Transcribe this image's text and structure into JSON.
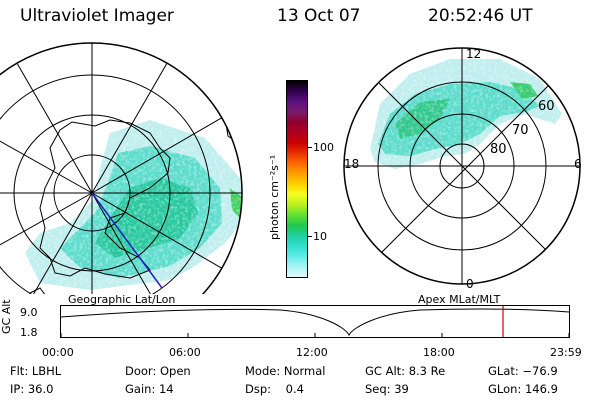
{
  "header": {
    "title": "Ultraviolet Imager",
    "date": "13 Oct 07",
    "time": "20:52:46 UT"
  },
  "geo_map": {
    "caption": "Geographic Lat/Lon"
  },
  "colorbar": {
    "unit_label": "photon cm⁻²s⁻¹",
    "ticks": [
      "100",
      "10"
    ],
    "colors": [
      "#000000",
      "#33004d",
      "#5a1080",
      "#7a1a6e",
      "#8f0030",
      "#b00020",
      "#cc0000",
      "#e83000",
      "#ff6a00",
      "#ffa000",
      "#ffd000",
      "#f4ff20",
      "#b8f020",
      "#60e030",
      "#20c850",
      "#20d0a0",
      "#30e0d0",
      "#60ece8",
      "#a8f4f4",
      "#e0fafa"
    ]
  },
  "apex_map": {
    "caption": "Apex MLat/MLT",
    "mlt_labels": {
      "top": "12",
      "left": "18",
      "right": "6",
      "bottom": "0"
    },
    "lat_labels": [
      "60",
      "70",
      "80"
    ]
  },
  "orbit": {
    "ylabel": "GC Alt",
    "y_ticks": [
      "9.0",
      "1.8"
    ],
    "x_ticks": [
      "00:00",
      "06:00",
      "12:00",
      "18:00",
      "23:59"
    ],
    "marker_color": "#cc0000"
  },
  "status": {
    "row1": {
      "flt": "Flt: LBHL",
      "door": "Door: Open",
      "mode": "Mode: Normal",
      "gcalt": "GC Alt: 8.3 Re",
      "glat": "GLat: −76.9"
    },
    "row2": {
      "ip": "IP: 36.0",
      "gain": "Gain: 14",
      "dsp": "Dsp:    0.4",
      "seq": "Seq: 39",
      "glon": "GLon: 146.9"
    }
  }
}
